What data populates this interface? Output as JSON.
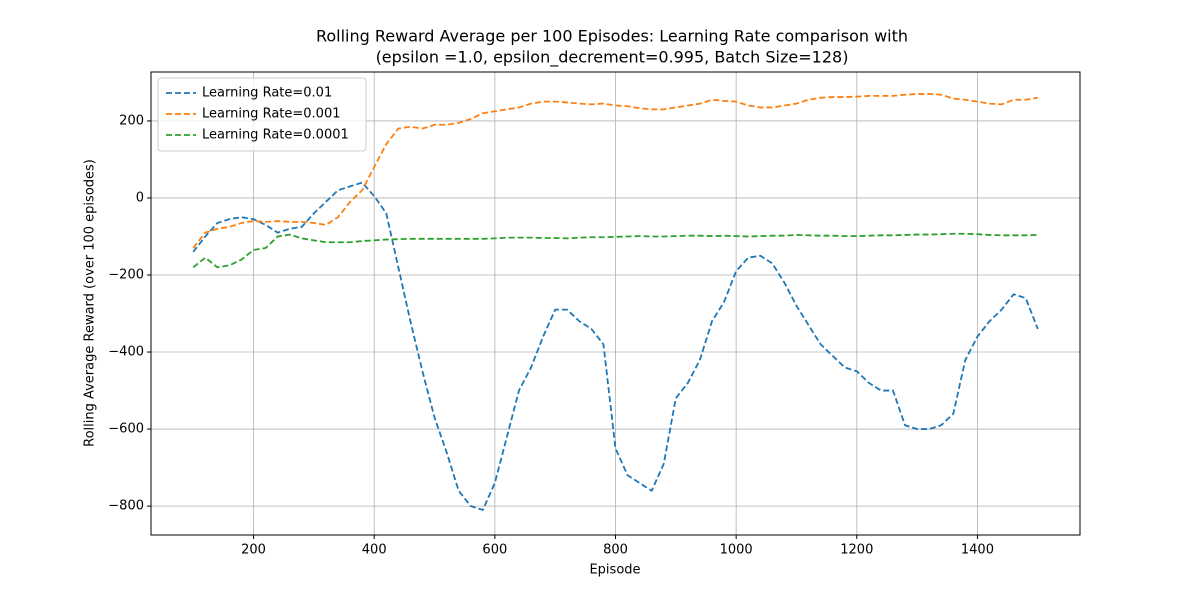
{
  "chart_data": {
    "type": "line",
    "title": [
      "Rolling Reward Average per 100 Episodes: Learning Rate comparison with",
      "(epsilon =1.0, epsilon_decrement=0.995, Batch Size=128)"
    ],
    "xlabel": "Episode",
    "ylabel": "Rolling Average Reward (over 100 episodes)",
    "x": [
      100,
      120,
      140,
      160,
      180,
      200,
      220,
      240,
      260,
      280,
      300,
      320,
      340,
      360,
      380,
      400,
      420,
      440,
      460,
      480,
      500,
      520,
      540,
      560,
      580,
      600,
      620,
      640,
      660,
      680,
      700,
      720,
      740,
      760,
      780,
      800,
      820,
      840,
      860,
      880,
      900,
      920,
      940,
      960,
      980,
      1000,
      1020,
      1040,
      1060,
      1080,
      1100,
      1120,
      1140,
      1160,
      1180,
      1200,
      1220,
      1240,
      1260,
      1280,
      1300,
      1320,
      1340,
      1360,
      1380,
      1400,
      1420,
      1440,
      1460,
      1480,
      1500
    ],
    "series": [
      {
        "name": "Learning Rate=0.01",
        "color": "#1f77b4",
        "values": [
          -140,
          -100,
          -65,
          -55,
          -50,
          -55,
          -70,
          -90,
          -80,
          -75,
          -40,
          -10,
          20,
          30,
          40,
          5,
          -40,
          -180,
          -320,
          -450,
          -570,
          -660,
          -760,
          -800,
          -810,
          -740,
          -620,
          -500,
          -440,
          -360,
          -290,
          -290,
          -320,
          -340,
          -380,
          -650,
          -720,
          -740,
          -760,
          -690,
          -520,
          -480,
          -420,
          -320,
          -270,
          -190,
          -155,
          -150,
          -170,
          -220,
          -280,
          -330,
          -380,
          -410,
          -440,
          -450,
          -480,
          -500,
          -500,
          -590,
          -600,
          -600,
          -590,
          -560,
          -420,
          -360,
          -320,
          -290,
          -250,
          -260,
          -340
        ]
      },
      {
        "name": "Learning Rate=0.001",
        "color": "#ff7f0e",
        "values": [
          -130,
          -90,
          -80,
          -75,
          -65,
          -60,
          -62,
          -60,
          -62,
          -62,
          -65,
          -70,
          -50,
          -10,
          20,
          80,
          140,
          180,
          185,
          180,
          190,
          190,
          195,
          205,
          220,
          225,
          230,
          235,
          245,
          250,
          250,
          248,
          245,
          243,
          245,
          240,
          238,
          233,
          230,
          230,
          235,
          240,
          245,
          255,
          252,
          250,
          240,
          235,
          235,
          240,
          245,
          255,
          260,
          262,
          262,
          263,
          265,
          265,
          265,
          268,
          270,
          270,
          268,
          258,
          255,
          250,
          245,
          243,
          255,
          255,
          260
        ]
      },
      {
        "name": "Learning Rate=0.0001",
        "color": "#2ca02c",
        "values": [
          -180,
          -155,
          -180,
          -175,
          -160,
          -135,
          -130,
          -100,
          -95,
          -105,
          -110,
          -115,
          -115,
          -115,
          -112,
          -110,
          -108,
          -107,
          -106,
          -106,
          -106,
          -106,
          -106,
          -106,
          -106,
          -105,
          -103,
          -103,
          -103,
          -104,
          -104,
          -105,
          -103,
          -102,
          -102,
          -101,
          -100,
          -99,
          -100,
          -100,
          -99,
          -98,
          -98,
          -99,
          -98,
          -99,
          -100,
          -99,
          -98,
          -98,
          -96,
          -97,
          -98,
          -98,
          -99,
          -99,
          -98,
          -97,
          -97,
          -96,
          -95,
          -95,
          -94,
          -93,
          -93,
          -94,
          -96,
          -97,
          -97,
          -97,
          -96
        ]
      }
    ],
    "xlim": [
      30,
      1570
    ],
    "ylim": [
      -875,
      327
    ],
    "xticks": [
      200,
      400,
      600,
      800,
      1000,
      1200,
      1400
    ],
    "yticks": [
      {
        "value": -800,
        "label": "−800"
      },
      {
        "value": -600,
        "label": "−600"
      },
      {
        "value": -400,
        "label": "−400"
      },
      {
        "value": -200,
        "label": "−200"
      },
      0,
      200
    ],
    "grid": true,
    "dashed": true,
    "legend": "upper left"
  }
}
